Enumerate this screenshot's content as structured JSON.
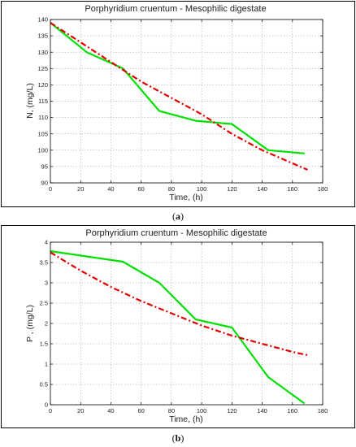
{
  "chart_data": [
    {
      "type": "line",
      "title": "Porphyridium cruentum -  Mesophilic digestate",
      "xlabel": "Time, (h)",
      "ylabel": "N, (mg/L)",
      "xlim": [
        0,
        180
      ],
      "ylim": [
        90,
        140
      ],
      "xticks": [
        0,
        20,
        40,
        60,
        80,
        100,
        120,
        140,
        160,
        180
      ],
      "yticks": [
        90,
        95,
        100,
        105,
        110,
        115,
        120,
        125,
        130,
        135,
        140
      ],
      "grid": true,
      "caption": "a",
      "series": [
        {
          "color": "#00e000",
          "style": "solid",
          "x": [
            0,
            24,
            48,
            72,
            96,
            120,
            144,
            168
          ],
          "y": [
            139,
            130,
            125,
            112,
            109,
            108,
            100,
            99
          ]
        },
        {
          "color": "#e00000",
          "style": "dash-dot",
          "x": [
            0,
            20,
            40,
            60,
            80,
            100,
            120,
            140,
            160,
            170
          ],
          "y": [
            139,
            133,
            127,
            121,
            116,
            111,
            105,
            100,
            96,
            94
          ]
        }
      ]
    },
    {
      "type": "line",
      "title": "Porphyridium cruentum -  Mesophilic digestate",
      "xlabel": "Time, (h)",
      "ylabel": "P , (mg/L)",
      "xlim": [
        0,
        180
      ],
      "ylim": [
        0,
        4
      ],
      "xticks": [
        0,
        20,
        40,
        60,
        80,
        100,
        120,
        140,
        160,
        180
      ],
      "yticks": [
        0,
        0.5,
        1,
        1.5,
        2,
        2.5,
        3,
        3.5,
        4
      ],
      "grid": true,
      "caption": "b",
      "series": [
        {
          "color": "#00e000",
          "style": "solid",
          "x": [
            0,
            48,
            72,
            96,
            120,
            144,
            168
          ],
          "y": [
            3.78,
            3.52,
            3.0,
            2.1,
            1.9,
            0.68,
            0.03
          ]
        },
        {
          "color": "#e00000",
          "style": "dash-dot",
          "x": [
            0,
            20,
            40,
            60,
            80,
            100,
            120,
            140,
            160,
            170
          ],
          "y": [
            3.75,
            3.3,
            2.9,
            2.55,
            2.25,
            1.95,
            1.7,
            1.5,
            1.3,
            1.22
          ]
        }
      ]
    }
  ]
}
